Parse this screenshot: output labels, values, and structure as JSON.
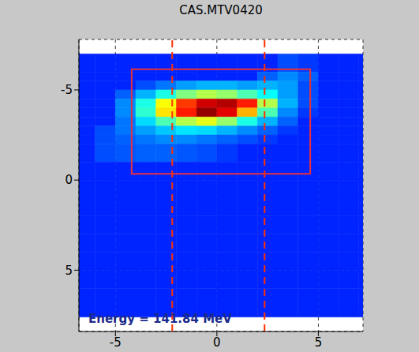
{
  "chart_data": {
    "type": "heatmap",
    "title": "CAS.MTV0420",
    "annotation": "Energy = 141.84 MeV",
    "xlim": [
      -6.8,
      7.2
    ],
    "xticks": [
      -5,
      0,
      5
    ],
    "ylim": [
      -7.8,
      8.4
    ],
    "yticks": [
      -5,
      0,
      5
    ],
    "grid": true,
    "x_bins": [
      -6.8,
      -6,
      -5,
      -4,
      -3,
      -2,
      -1,
      0,
      1,
      2,
      3,
      4,
      5,
      6,
      7,
      7.2
    ],
    "y_bins": [
      -7,
      -6,
      -5.5,
      -5,
      -4.5,
      -4,
      -3.5,
      -3,
      -2.5,
      -2,
      -1,
      0,
      1,
      2,
      3,
      4,
      5,
      6,
      7,
      7.6
    ],
    "cells": [
      [
        16,
        16,
        16,
        16,
        16,
        16,
        16,
        16,
        16,
        16,
        20,
        18,
        16,
        16,
        16
      ],
      [
        16,
        16,
        16,
        16,
        16,
        16,
        16,
        16,
        16,
        22,
        26,
        22,
        16,
        16,
        16
      ],
      [
        16,
        16,
        16,
        20,
        24,
        28,
        30,
        30,
        28,
        30,
        28,
        20,
        16,
        16,
        16
      ],
      [
        16,
        16,
        22,
        30,
        40,
        50,
        55,
        52,
        45,
        38,
        28,
        20,
        16,
        16,
        16
      ],
      [
        16,
        16,
        26,
        40,
        62,
        82,
        92,
        95,
        85,
        55,
        30,
        20,
        16,
        16,
        16
      ],
      [
        16,
        16,
        26,
        42,
        65,
        85,
        98,
        90,
        70,
        45,
        26,
        18,
        16,
        16,
        16
      ],
      [
        16,
        16,
        24,
        34,
        45,
        55,
        60,
        52,
        40,
        30,
        22,
        16,
        16,
        16,
        16
      ],
      [
        16,
        20,
        24,
        28,
        32,
        35,
        34,
        30,
        26,
        22,
        18,
        16,
        16,
        16,
        16
      ],
      [
        16,
        20,
        22,
        24,
        26,
        26,
        24,
        22,
        20,
        18,
        16,
        16,
        16,
        16,
        16
      ],
      [
        16,
        20,
        21,
        22,
        22,
        21,
        20,
        18,
        16,
        16,
        16,
        16,
        16,
        16,
        16
      ],
      [
        16,
        16,
        16,
        16,
        16,
        16,
        16,
        16,
        16,
        16,
        16,
        16,
        16,
        16,
        16
      ],
      [
        16,
        16,
        16,
        16,
        16,
        16,
        16,
        16,
        16,
        16,
        16,
        16,
        16,
        16,
        16
      ],
      [
        16,
        16,
        16,
        16,
        16,
        16,
        16,
        16,
        16,
        16,
        16,
        16,
        16,
        16,
        16
      ],
      [
        16,
        16,
        16,
        16,
        16,
        16,
        16,
        16,
        16,
        16,
        16,
        16,
        16,
        16,
        16
      ],
      [
        16,
        16,
        16,
        16,
        16,
        16,
        16,
        16,
        16,
        16,
        16,
        16,
        16,
        16,
        16
      ],
      [
        16,
        16,
        16,
        16,
        16,
        16,
        16,
        16,
        16,
        16,
        16,
        16,
        16,
        16,
        16
      ],
      [
        16,
        16,
        16,
        16,
        16,
        16,
        16,
        16,
        16,
        16,
        16,
        16,
        16,
        16,
        16
      ],
      [
        16,
        16,
        16,
        16,
        16,
        16,
        16,
        16,
        16,
        16,
        16,
        16,
        16,
        16,
        16
      ],
      [
        16,
        16,
        16,
        16,
        16,
        16,
        16,
        16,
        16,
        16,
        16,
        16,
        16,
        16,
        16
      ]
    ],
    "color_range": [
      0,
      100
    ],
    "rectangle": {
      "x": [
        -4.2,
        4.6
      ],
      "y": [
        -6.15,
        -0.35
      ],
      "color": "#e8303a"
    },
    "vertical_lines": {
      "x": [
        -2.2,
        2.35
      ],
      "color": "#ff3000",
      "line_style": "dashed"
    }
  }
}
